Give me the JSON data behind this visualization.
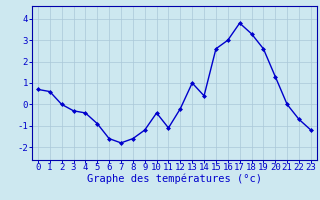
{
  "hours": [
    0,
    1,
    2,
    3,
    4,
    5,
    6,
    7,
    8,
    9,
    10,
    11,
    12,
    13,
    14,
    15,
    16,
    17,
    18,
    19,
    20,
    21,
    22,
    23
  ],
  "temps": [
    0.7,
    0.6,
    0.0,
    -0.3,
    -0.4,
    -0.9,
    -1.6,
    -1.8,
    -1.6,
    -1.2,
    -0.4,
    -1.1,
    -0.2,
    1.0,
    0.4,
    2.6,
    3.0,
    3.8,
    3.3,
    2.6,
    1.3,
    0.0,
    -0.7,
    -1.2
  ],
  "line_color": "#0000cc",
  "marker": "D",
  "marker_size": 2.0,
  "bg_color": "#cde8f0",
  "grid_color": "#aac8d8",
  "axis_color": "#0000aa",
  "label_color": "#0000cc",
  "xlabel": "Graphe des températures (°c)",
  "ylim": [
    -2.6,
    4.6
  ],
  "yticks": [
    -2,
    -1,
    0,
    1,
    2,
    3,
    4
  ],
  "xticks": [
    0,
    1,
    2,
    3,
    4,
    5,
    6,
    7,
    8,
    9,
    10,
    11,
    12,
    13,
    14,
    15,
    16,
    17,
    18,
    19,
    20,
    21,
    22,
    23
  ],
  "xtick_labels": [
    "0",
    "1",
    "2",
    "3",
    "4",
    "5",
    "6",
    "7",
    "8",
    "9",
    "10",
    "11",
    "12",
    "13",
    "14",
    "15",
    "16",
    "17",
    "18",
    "19",
    "20",
    "21",
    "22",
    "23"
  ],
  "tick_fontsize": 6.5,
  "xlabel_fontsize": 7.5,
  "linewidth": 1.0
}
